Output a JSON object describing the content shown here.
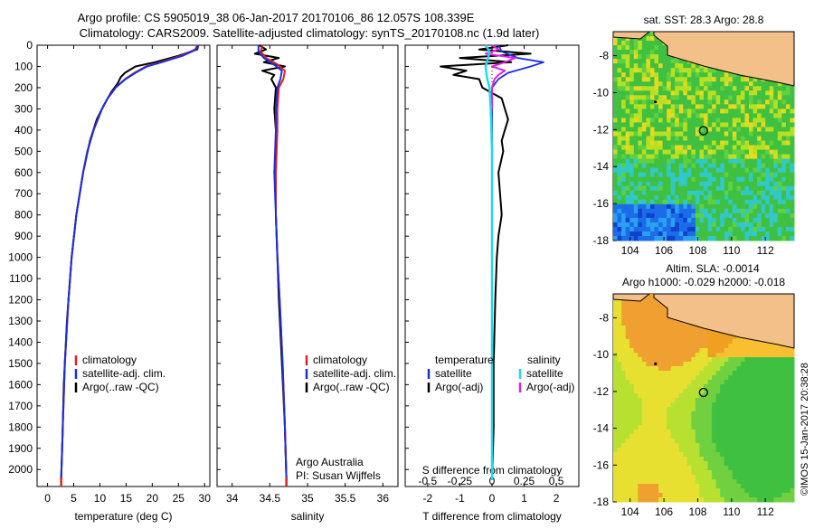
{
  "header": {
    "line1": "Argo profile: CS 5905019_38 06-Jan-2017 20170106_86 12.057S 108.339E",
    "line2": "Climatology: CARS2009. Satellite-adjusted climatology: synTS_20170108.nc (1.9d later)"
  },
  "colors": {
    "clim": "#e02020",
    "sat": "#1a2ee0",
    "argo": "#000000",
    "sal_sat": "#20d8e8",
    "sal_argo": "#e020e0",
    "land": "#f4c08a"
  },
  "chart_data": [
    {
      "type": "line",
      "id": "temperature",
      "xlabel": "temperature (deg C)",
      "ylabel": "",
      "xlim": [
        -2,
        31
      ],
      "ylim": [
        2080,
        0
      ],
      "xticks": [
        "0",
        "5",
        "10",
        "15",
        "20",
        "25",
        "30"
      ],
      "yticks": [
        "0",
        "100",
        "200",
        "300",
        "400",
        "500",
        "600",
        "700",
        "800",
        "900",
        "1000",
        "1100",
        "1200",
        "1300",
        "1400",
        "1500",
        "1600",
        "1700",
        "1800",
        "1900",
        "2000"
      ],
      "legend": [
        "climatology",
        "satellite-adj. clim.",
        "Argo(..raw -QC)"
      ],
      "series": [
        {
          "name": "climatology",
          "depth": [
            0,
            20,
            50,
            80,
            100,
            130,
            160,
            200,
            250,
            300,
            400,
            500,
            600,
            800,
            1000,
            1200,
            1500,
            1800,
            2050
          ],
          "values": [
            28.6,
            28.2,
            25.5,
            21.5,
            18.8,
            16.6,
            14.8,
            13.0,
            11.5,
            10.4,
            8.8,
            7.6,
            6.8,
            5.5,
            4.6,
            4.0,
            3.3,
            2.9,
            2.6
          ]
        },
        {
          "name": "satellite-adj. clim.",
          "depth": [
            0,
            20,
            50,
            80,
            100,
            130,
            160,
            200,
            250,
            300,
            400,
            500,
            600,
            800,
            1000,
            1200,
            1500,
            1800,
            2050
          ],
          "values": [
            28.8,
            28.4,
            25.8,
            21.8,
            19.0,
            16.8,
            14.9,
            13.0,
            11.5,
            10.4,
            8.8,
            7.6,
            6.8,
            5.5,
            4.6,
            4.0,
            3.3,
            2.9,
            2.6
          ]
        },
        {
          "name": "Argo(..raw -QC)",
          "depth": [
            0,
            20,
            50,
            80,
            100,
            130,
            150,
            180,
            220,
            280,
            350,
            450,
            600,
            800,
            1000,
            1300,
            1600,
            1900,
            2050
          ],
          "values": [
            28.8,
            28.6,
            25.0,
            20.5,
            16.8,
            14.8,
            14.0,
            13.4,
            12.2,
            10.8,
            9.4,
            8.1,
            6.8,
            5.5,
            4.6,
            3.7,
            3.1,
            2.8,
            2.6
          ]
        }
      ]
    },
    {
      "type": "line",
      "id": "salinity",
      "xlabel": "salinity",
      "xlim": [
        33.8,
        36.2
      ],
      "ylim": [
        2080,
        0
      ],
      "xticks": [
        "34",
        "34.5",
        "35",
        "35.5",
        "36"
      ],
      "legend": [
        "climatology",
        "satellite-adj. clim.",
        "Argo(..raw -QC)"
      ],
      "annotation": [
        "Argo Australia",
        "PI: Susan Wijffels"
      ],
      "series": [
        {
          "name": "climatology",
          "depth": [
            0,
            30,
            60,
            90,
            120,
            160,
            200,
            300,
            400,
            600,
            800,
            1000,
            1200,
            1500,
            1800,
            2050
          ],
          "values": [
            34.4,
            34.38,
            34.45,
            34.6,
            34.7,
            34.68,
            34.62,
            34.6,
            34.6,
            34.58,
            34.58,
            34.6,
            34.63,
            34.67,
            34.7,
            34.72
          ]
        },
        {
          "name": "satellite-adj. clim.",
          "depth": [
            0,
            30,
            60,
            90,
            120,
            160,
            200,
            300,
            400,
            600,
            800,
            1000,
            1200,
            1500,
            1800,
            2050
          ],
          "values": [
            34.35,
            34.35,
            34.42,
            34.55,
            34.66,
            34.64,
            34.6,
            34.58,
            34.58,
            34.56,
            34.58,
            34.6,
            34.63,
            34.67,
            34.7,
            34.72
          ]
        },
        {
          "name": "Argo(..raw -QC)",
          "depth": [
            0,
            20,
            40,
            60,
            80,
            100,
            120,
            140,
            160,
            200,
            300,
            400,
            600,
            800,
            1000,
            1200,
            1500,
            1800,
            2050
          ],
          "values": [
            34.36,
            34.45,
            34.3,
            34.62,
            34.42,
            34.7,
            34.4,
            34.56,
            34.52,
            34.58,
            34.56,
            34.58,
            34.58,
            34.58,
            34.6,
            34.62,
            34.66,
            34.7,
            34.72
          ]
        }
      ]
    },
    {
      "type": "line",
      "id": "difference",
      "xlabel": "T difference from climatology",
      "xlabel_top": "S difference from climatology",
      "xlim": [
        -2.7,
        2.7
      ],
      "ylim": [
        2080,
        0
      ],
      "xticks_bottom": [
        "-2",
        "-1",
        "0",
        "1",
        "2"
      ],
      "xticks_top": [
        "-0.5",
        "-0.25",
        "0",
        "0.25",
        "0.5"
      ],
      "legend": {
        "temperature": [
          "satellite",
          "Argo(-adj)"
        ],
        "salinity": [
          "satellite",
          "Argo(-adj)"
        ]
      },
      "series": [
        {
          "name": "temperature satellite",
          "depth": [
            0,
            30,
            60,
            80,
            100,
            130,
            160,
            200,
            300,
            500,
            800,
            1200,
            2050
          ],
          "values": [
            0.2,
            0.3,
            0.8,
            1.6,
            1.2,
            0.5,
            0.2,
            0.0,
            0.0,
            0.0,
            0.0,
            0.0,
            0.0
          ]
        },
        {
          "name": "temperature Argo(-adj)",
          "depth": [
            0,
            20,
            40,
            60,
            80,
            100,
            120,
            140,
            160,
            200,
            250,
            300,
            350,
            400,
            450,
            500,
            600,
            700,
            800,
            900,
            1000,
            1200,
            1500,
            1800,
            2050
          ],
          "values": [
            0.5,
            -0.4,
            1.2,
            -1.0,
            0.6,
            -1.6,
            -0.8,
            -1.2,
            -0.4,
            -0.3,
            0.3,
            0.4,
            0.5,
            0.4,
            0.3,
            0.35,
            0.2,
            0.25,
            0.3,
            0.2,
            0.15,
            0.1,
            0.05,
            0.05,
            0.0
          ]
        },
        {
          "name": "salinity satellite",
          "depth": [
            0,
            30,
            60,
            100,
            150,
            200,
            300,
            500,
            800,
            1200,
            2050
          ],
          "values": [
            -0.05,
            -0.02,
            -0.03,
            -0.05,
            -0.04,
            -0.02,
            -0.01,
            0.0,
            0.0,
            0.0,
            0.0
          ]
        },
        {
          "name": "salinity Argo(-adj)",
          "depth": [
            0,
            20,
            40,
            60,
            80,
            100,
            120,
            140,
            160,
            200,
            250,
            300
          ],
          "values": [
            0.0,
            0.05,
            -0.05,
            0.18,
            0.1,
            0.0,
            0.1,
            0.05,
            0.02,
            0.0,
            0.0,
            0.0
          ]
        }
      ]
    },
    {
      "type": "heatmap",
      "id": "sst-map",
      "title": "sat. SST: 28.3 Argo: 28.8",
      "xlim": [
        103,
        113.7
      ],
      "ylim": [
        -18,
        -6.7
      ],
      "xticks": [
        "104",
        "106",
        "108",
        "110",
        "112"
      ],
      "yticks": [
        "-8",
        "-10",
        "-12",
        "-14",
        "-16",
        "-18"
      ],
      "profile_lon": 108.339,
      "profile_lat": -12.057
    },
    {
      "type": "heatmap",
      "id": "sla-map",
      "title": "Altim. SLA: -0.0014",
      "subtitle": "Argo h1000: -0.029 h2000: -0.018",
      "xlim": [
        103,
        113.7
      ],
      "ylim": [
        -18,
        -6.7
      ],
      "xticks": [
        "104",
        "106",
        "108",
        "110",
        "112"
      ],
      "yticks": [
        "-8",
        "-10",
        "-12",
        "-14",
        "-16",
        "-18"
      ],
      "profile_lon": 108.339,
      "profile_lat": -12.057
    }
  ],
  "footer": {
    "credit": "©IMOS 15-Jan-2017 20:38:28"
  }
}
